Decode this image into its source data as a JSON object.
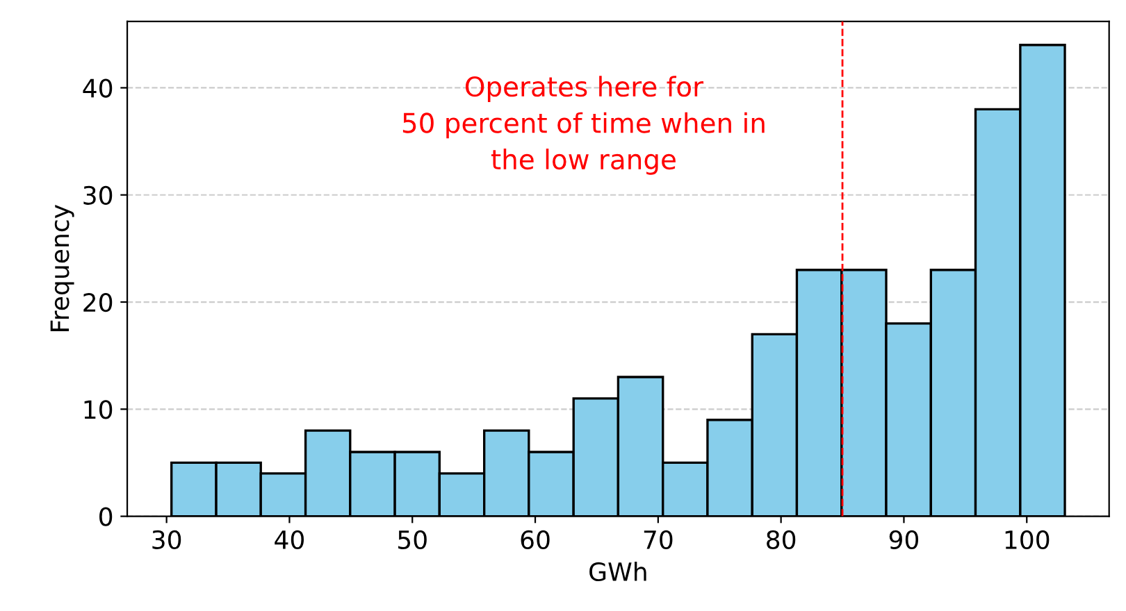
{
  "chart_data": {
    "type": "histogram",
    "xlabel": "GWh",
    "ylabel": "Frequency",
    "bins": [
      30.4,
      34.04,
      37.67,
      41.31,
      44.94,
      48.58,
      52.21,
      55.85,
      59.48,
      63.12,
      66.75,
      70.39,
      74.02,
      77.66,
      81.29,
      84.93,
      88.56,
      92.2,
      95.83,
      99.47,
      103.1
    ],
    "values": [
      5,
      5,
      4,
      8,
      6,
      6,
      4,
      8,
      6,
      11,
      13,
      5,
      9,
      17,
      23,
      23,
      18,
      23,
      38,
      44
    ],
    "color": "#87ceeb",
    "xlim": [
      26.8,
      106.7
    ],
    "ylim": [
      0,
      46.2
    ],
    "xticks": [
      30,
      40,
      50,
      60,
      70,
      80,
      90,
      100
    ],
    "yticks": [
      0,
      10,
      20,
      30,
      40
    ],
    "grid": "y",
    "ref_lines": [
      {
        "axis": "x",
        "value": 85,
        "color": "#ff0000",
        "line_style": "dashed"
      }
    ],
    "annotations": [
      "Operates here for\n50 percent of time when in\nthe low range"
    ]
  }
}
